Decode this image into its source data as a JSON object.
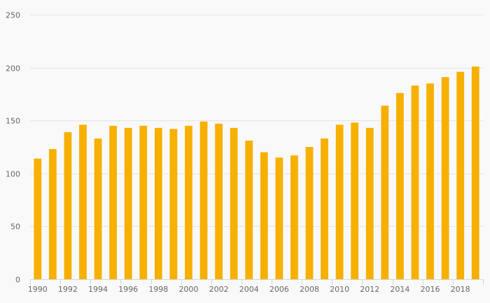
{
  "chart_data": {
    "type": "bar",
    "title": "",
    "xlabel": "",
    "ylabel": "",
    "categories": [
      "1990",
      "1991",
      "1992",
      "1993",
      "1994",
      "1995",
      "1996",
      "1997",
      "1998",
      "1999",
      "2000",
      "2001",
      "2002",
      "2003",
      "2004",
      "2005",
      "2006",
      "2007",
      "2008",
      "2009",
      "2010",
      "2011",
      "2012",
      "2013",
      "2014",
      "2015",
      "2016",
      "2017",
      "2018",
      "2019"
    ],
    "values": [
      114,
      123,
      139,
      146,
      133,
      145,
      143,
      145,
      143,
      142,
      145,
      149,
      147,
      143,
      131,
      120,
      115,
      117,
      125,
      133,
      146,
      148,
      143,
      164,
      176,
      183,
      185,
      191,
      196,
      201
    ],
    "x_tick_labels": [
      "1990",
      "1992",
      "1994",
      "1996",
      "1998",
      "2000",
      "2002",
      "2004",
      "2006",
      "2008",
      "2010",
      "2012",
      "2014",
      "2016",
      "2018"
    ],
    "y_ticks": [
      0,
      50,
      100,
      150,
      200,
      250
    ],
    "ylim": [
      0,
      250
    ],
    "grid": true,
    "legend": "none",
    "bar_color": "#f7b000"
  }
}
